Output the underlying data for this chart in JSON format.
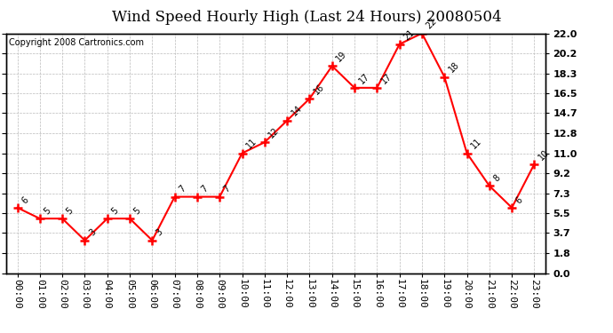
{
  "title": "Wind Speed Hourly High (Last 24 Hours) 20080504",
  "copyright": "Copyright 2008 Cartronics.com",
  "hours": [
    "00:00",
    "01:00",
    "02:00",
    "03:00",
    "04:00",
    "05:00",
    "06:00",
    "07:00",
    "08:00",
    "09:00",
    "10:00",
    "11:00",
    "12:00",
    "13:00",
    "14:00",
    "15:00",
    "16:00",
    "17:00",
    "18:00",
    "19:00",
    "20:00",
    "21:00",
    "22:00",
    "23:00"
  ],
  "values": [
    6,
    5,
    5,
    3,
    5,
    5,
    3,
    7,
    7,
    7,
    11,
    12,
    14,
    16,
    19,
    17,
    17,
    21,
    22,
    18,
    11,
    8,
    6,
    10
  ],
  "ylim": [
    0.0,
    22.0
  ],
  "yticks": [
    0.0,
    1.8,
    3.7,
    5.5,
    7.3,
    9.2,
    11.0,
    12.8,
    14.7,
    16.5,
    18.3,
    20.2,
    22.0
  ],
  "line_color": "red",
  "marker": "+",
  "marker_size": 7,
  "marker_color": "red",
  "bg_color": "white",
  "grid_color": "#bbbbbb",
  "title_fontsize": 12,
  "copyright_fontsize": 7,
  "label_fontsize": 8,
  "annotation_fontsize": 7
}
